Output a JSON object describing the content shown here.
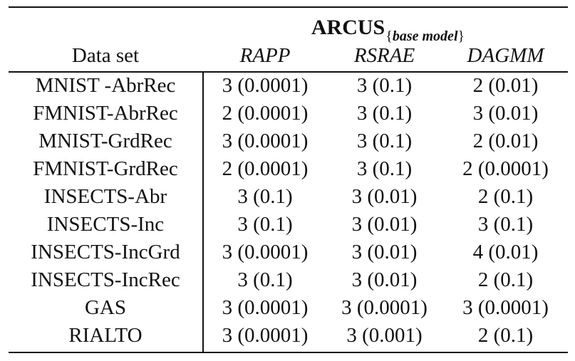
{
  "header": {
    "group_title": "ARCUS",
    "group_subscript_open": "{",
    "group_subscript_text": "base model",
    "group_subscript_close": "}",
    "columns": [
      "Data set",
      "RAPP",
      "RSRAE",
      "DAGMM"
    ]
  },
  "rows": [
    {
      "dataset": "MNIST -AbrRec",
      "rapp": "3 (0.0001)",
      "rsrae": "3 (0.1)",
      "dagmm": "2 (0.01)"
    },
    {
      "dataset": "FMNIST-AbrRec",
      "rapp": "2 (0.0001)",
      "rsrae": "3 (0.1)",
      "dagmm": "3 (0.01)"
    },
    {
      "dataset": "MNIST-GrdRec",
      "rapp": "3 (0.0001)",
      "rsrae": "3 (0.1)",
      "dagmm": "2 (0.01)"
    },
    {
      "dataset": "FMNIST-GrdRec",
      "rapp": "2 (0.0001)",
      "rsrae": "3 (0.1)",
      "dagmm": "2 (0.0001)"
    },
    {
      "dataset": "INSECTS-Abr",
      "rapp": "3 (0.1)",
      "rsrae": "3 (0.01)",
      "dagmm": "2 (0.1)"
    },
    {
      "dataset": "INSECTS-Inc",
      "rapp": "3 (0.1)",
      "rsrae": "3 (0.01)",
      "dagmm": "3 (0.1)"
    },
    {
      "dataset": "INSECTS-IncGrd",
      "rapp": "3 (0.0001)",
      "rsrae": "3 (0.01)",
      "dagmm": "4 (0.01)"
    },
    {
      "dataset": "INSECTS-IncRec",
      "rapp": "3 (0.1)",
      "rsrae": "3 (0.01)",
      "dagmm": "2 (0.1)"
    },
    {
      "dataset": "GAS",
      "rapp": "3 (0.0001)",
      "rsrae": "3 (0.0001)",
      "dagmm": "3 (0.0001)"
    },
    {
      "dataset": "RIALTO",
      "rapp": "3 (0.0001)",
      "rsrae": "3 (0.001)",
      "dagmm": "2 (0.1)"
    }
  ]
}
